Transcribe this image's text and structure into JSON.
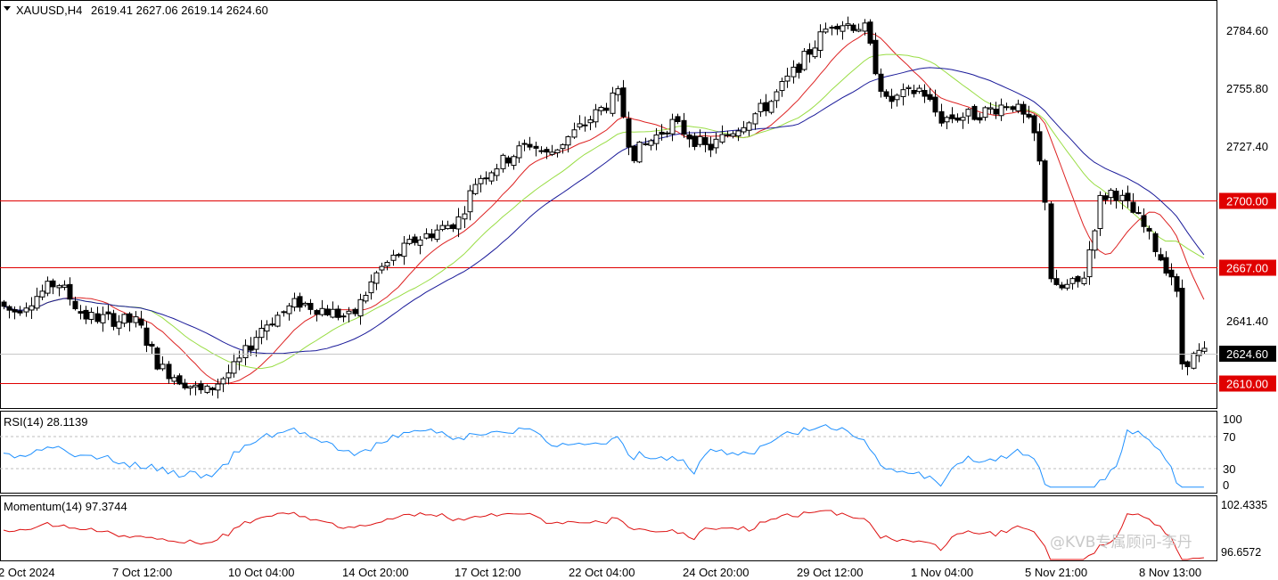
{
  "header": {
    "symbol": "XAUUSD,H4",
    "ohlc": "2619.41 2627.06 2619.14 2624.60"
  },
  "price_axis": {
    "ticks": [
      "2784.60",
      "2755.80",
      "2727.40",
      "2641.40"
    ],
    "current_price": "2624.60",
    "current_color": "#000000"
  },
  "levels": [
    {
      "label": "2700.00",
      "value": 2700.0,
      "color": "#e00000"
    },
    {
      "label": "2667.00",
      "value": 2667.0,
      "color": "#e00000"
    },
    {
      "label": "2610.00",
      "value": 2610.0,
      "color": "#e00000"
    }
  ],
  "rsi": {
    "title": "RSI(14) 28.1139",
    "ticks": [
      "100",
      "70",
      "30",
      "0"
    ],
    "color": "#1e90ff"
  },
  "momentum": {
    "title": "Momentum(14) 97.3744",
    "ticks": [
      "102.4335",
      "96.6572"
    ],
    "color": "#dd1111"
  },
  "time_axis": {
    "labels": [
      "2 Oct 2024",
      "7 Oct 12:00",
      "10 Oct 04:00",
      "14 Oct 20:00",
      "17 Oct 12:00",
      "22 Oct 04:00",
      "24 Oct 20:00",
      "29 Oct 12:00",
      "1 Nov 04:00",
      "5 Nov 21:00",
      "8 Nov 13:00"
    ]
  },
  "watermark": "@KVB专属顾问-李丹",
  "chart_data": {
    "type": "candlestick",
    "title": "XAUUSD,H4",
    "y_scale": "price",
    "grid": false,
    "key_prices": [
      {
        "label": "start",
        "value": 2650
      },
      {
        "label": "10 Oct low",
        "value": 2605
      },
      {
        "label": "29 Oct high",
        "value": 2790
      },
      {
        "label": "1 Nov",
        "value": 2745
      },
      {
        "label": "5 Nov low",
        "value": 2650
      },
      {
        "label": "7 Nov high",
        "value": 2710
      },
      {
        "label": "8 Nov low",
        "value": 2617
      },
      {
        "label": "last close",
        "value": 2624.6
      }
    ],
    "series": [
      {
        "name": "",
        "type": "line",
        "color": "#dd2222"
      },
      {
        "name": "",
        "type": "line",
        "color": "#99dd44"
      },
      {
        "name": "",
        "type": "line",
        "color": "#1a1a99"
      }
    ]
  }
}
